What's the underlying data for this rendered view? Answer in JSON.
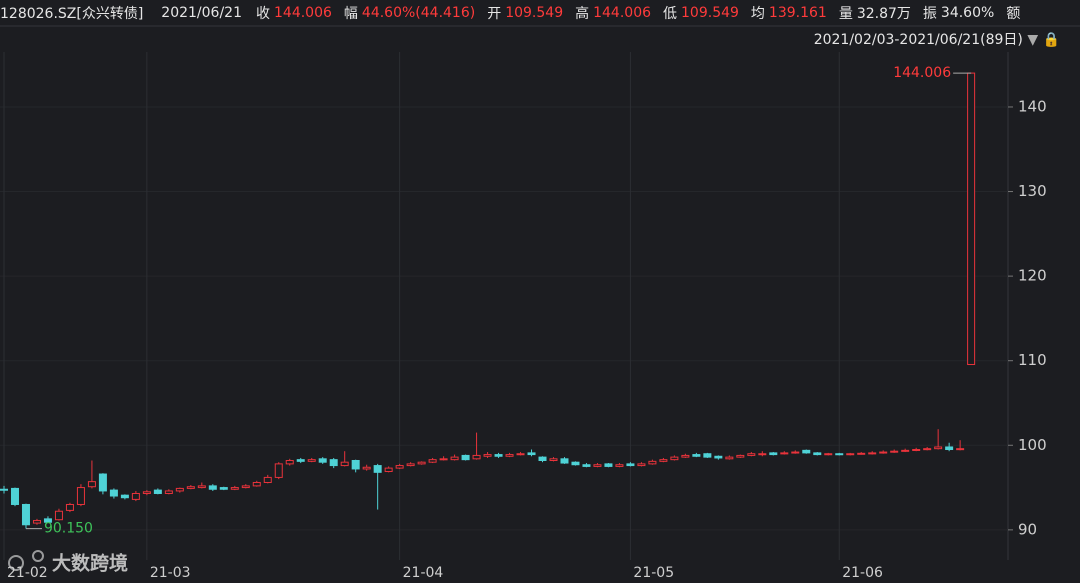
{
  "header": {
    "code": "128026.SZ[众兴转债]",
    "date": "2021/06/21",
    "fields": [
      {
        "label": "收",
        "value": "144.006"
      },
      {
        "label": "幅",
        "value": "44.60%(44.416)"
      },
      {
        "label": "开",
        "value": "109.549"
      },
      {
        "label": "高",
        "value": "144.006"
      },
      {
        "label": "低",
        "value": "109.549"
      },
      {
        "label": "均",
        "value": "139.161"
      },
      {
        "label": "量",
        "value": "32.87万"
      },
      {
        "label": "振",
        "value": "34.60%"
      },
      {
        "label": "额"
      }
    ],
    "range": "2021/02/03-2021/06/21(89日)",
    "watermark": "大数跨境"
  },
  "chart_data": {
    "type": "candlestick",
    "categories": [
      "21-02",
      null,
      null,
      null,
      null,
      null,
      null,
      null,
      null,
      null,
      null,
      null,
      null,
      "21-03",
      null,
      null,
      null,
      null,
      null,
      null,
      null,
      null,
      null,
      null,
      null,
      null,
      null,
      null,
      null,
      null,
      null,
      null,
      null,
      null,
      null,
      null,
      "21-04",
      null,
      null,
      null,
      null,
      null,
      null,
      null,
      null,
      null,
      null,
      null,
      null,
      null,
      null,
      null,
      null,
      null,
      null,
      null,
      null,
      "21-05",
      null,
      null,
      null,
      null,
      null,
      null,
      null,
      null,
      null,
      null,
      null,
      null,
      null,
      null,
      null,
      null,
      null,
      null,
      "21-06",
      null,
      null,
      null,
      null,
      null,
      null,
      null,
      null,
      null,
      null,
      null,
      null
    ],
    "open": [
      94.8,
      94.9,
      93.0,
      90.8,
      91.3,
      91.2,
      92.3,
      93.0,
      95.1,
      96.6,
      94.7,
      94.1,
      93.6,
      94.3,
      94.7,
      94.3,
      94.6,
      94.9,
      95.0,
      95.2,
      95.0,
      94.8,
      95.0,
      95.2,
      95.6,
      96.2,
      97.8,
      98.3,
      98.1,
      98.4,
      98.3,
      97.6,
      98.2,
      97.2,
      97.6,
      96.9,
      97.3,
      97.6,
      97.8,
      98.0,
      98.3,
      98.3,
      98.8,
      98.4,
      98.7,
      98.9,
      98.7,
      98.9,
      99.1,
      98.6,
      98.2,
      98.4,
      98.0,
      97.7,
      97.5,
      97.8,
      97.5,
      97.8,
      97.6,
      97.8,
      98.1,
      98.3,
      98.6,
      98.9,
      99.0,
      98.7,
      98.4,
      98.6,
      98.8,
      99.0,
      99.1,
      99.0,
      99.1,
      99.4,
      99.1,
      98.9,
      99.0,
      98.9,
      99.0,
      99.0,
      99.1,
      99.2,
      99.3,
      99.4,
      99.5,
      99.6,
      99.8,
      99.5,
      109.549
    ],
    "high": [
      95.2,
      95.0,
      93.1,
      91.3,
      91.6,
      92.5,
      93.2,
      95.4,
      98.2,
      96.7,
      94.9,
      94.2,
      94.6,
      94.7,
      94.9,
      94.8,
      95.0,
      95.3,
      95.6,
      95.4,
      95.1,
      95.2,
      95.4,
      95.8,
      96.5,
      98.0,
      98.4,
      98.5,
      98.5,
      98.6,
      98.5,
      99.3,
      98.3,
      97.7,
      97.8,
      97.5,
      97.8,
      98.0,
      98.1,
      98.5,
      98.7,
      98.9,
      98.9,
      101.5,
      99.2,
      99.1,
      99.1,
      99.2,
      99.5,
      98.7,
      98.6,
      98.6,
      98.1,
      97.9,
      97.9,
      97.9,
      97.9,
      98.0,
      98.0,
      98.3,
      98.5,
      98.8,
      99.0,
      99.1,
      99.1,
      98.8,
      98.8,
      98.9,
      99.2,
      99.3,
      99.2,
      99.3,
      99.4,
      99.5,
      99.2,
      99.1,
      99.1,
      99.1,
      99.2,
      99.3,
      99.4,
      99.5,
      99.6,
      99.7,
      99.8,
      101.9,
      100.3,
      100.6,
      144.006
    ],
    "low": [
      94.3,
      92.8,
      90.15,
      90.6,
      90.8,
      91.1,
      92.1,
      92.8,
      94.9,
      94.2,
      93.7,
      93.6,
      93.4,
      94.1,
      94.2,
      94.2,
      94.4,
      94.8,
      94.9,
      94.6,
      94.7,
      94.7,
      94.9,
      95.1,
      95.5,
      96.0,
      97.6,
      97.9,
      98.0,
      97.8,
      97.3,
      97.5,
      96.8,
      97.0,
      92.4,
      96.8,
      97.2,
      97.5,
      97.7,
      97.9,
      98.2,
      98.2,
      98.2,
      98.3,
      98.5,
      98.5,
      98.6,
      98.8,
      98.7,
      98.0,
      98.1,
      97.8,
      97.6,
      97.4,
      97.4,
      97.4,
      97.4,
      97.5,
      97.5,
      97.7,
      98.0,
      98.2,
      98.5,
      98.6,
      98.5,
      98.3,
      98.3,
      98.5,
      98.7,
      98.7,
      98.8,
      98.9,
      99.0,
      99.0,
      98.8,
      98.8,
      98.8,
      98.8,
      98.9,
      98.9,
      99.0,
      99.1,
      99.2,
      99.3,
      99.4,
      99.5,
      99.3,
      99.4,
      109.549
    ],
    "close": [
      94.7,
      93.0,
      90.6,
      91.1,
      90.9,
      92.2,
      93.0,
      95.0,
      95.7,
      94.6,
      94.0,
      93.8,
      94.3,
      94.5,
      94.3,
      94.6,
      94.9,
      95.1,
      95.2,
      94.8,
      94.8,
      95.0,
      95.2,
      95.6,
      96.2,
      97.8,
      98.2,
      98.1,
      98.3,
      98.0,
      97.6,
      98.0,
      97.2,
      97.4,
      96.8,
      97.3,
      97.6,
      97.8,
      98.0,
      98.3,
      98.4,
      98.6,
      98.3,
      98.8,
      98.9,
      98.7,
      98.9,
      99.0,
      98.9,
      98.2,
      98.4,
      97.9,
      97.7,
      97.5,
      97.7,
      97.5,
      97.7,
      97.6,
      97.8,
      98.1,
      98.3,
      98.6,
      98.8,
      98.7,
      98.6,
      98.5,
      98.6,
      98.8,
      99.0,
      99.0,
      98.9,
      99.1,
      99.2,
      99.1,
      98.9,
      99.0,
      98.9,
      99.0,
      99.05,
      99.1,
      99.2,
      99.3,
      99.4,
      99.5,
      99.6,
      99.8,
      99.5,
      99.6,
      144.006
    ],
    "colors": {
      "up": "#e8333b",
      "down": "#4fd2d6"
    },
    "annotations": [
      {
        "value": 144.006,
        "label": "144.006",
        "color": "#ff3b3b"
      },
      {
        "value": 90.15,
        "label": "90.150",
        "color": "#3ec35a"
      }
    ],
    "ylim": [
      88.8,
      146.5
    ],
    "yticks": [
      90,
      100,
      110,
      120,
      130,
      140
    ],
    "grid": true
  }
}
